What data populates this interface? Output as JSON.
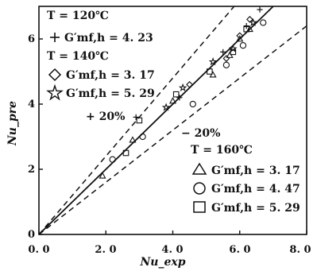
{
  "chart_data": {
    "type": "scatter",
    "xlabel": "Nu_exp",
    "ylabel": "Nu_pre",
    "xlim": [
      0,
      8
    ],
    "ylim": [
      0,
      7
    ],
    "x_ticks": [
      "0. 0",
      "2. 0",
      "4. 0",
      "6. 0",
      "8. 0"
    ],
    "y_ticks": [
      "0",
      "2",
      "4",
      "6"
    ],
    "legend_groups": [
      {
        "label": "T = 120℃",
        "entries": [
          {
            "symbol": "plus",
            "label": "G′mf,h = 4. 23"
          }
        ]
      },
      {
        "label": "T = 140℃",
        "entries": [
          {
            "symbol": "diamond",
            "label": "G′mf,h = 3. 17"
          },
          {
            "symbol": "star",
            "label": "G′mf,h = 5. 29"
          }
        ]
      },
      {
        "label": "T = 160℃",
        "entries": [
          {
            "symbol": "triangle",
            "label": "G′mf,h = 3. 17"
          },
          {
            "symbol": "circle",
            "label": "G′mf,h = 4. 47"
          },
          {
            "symbol": "square",
            "label": "G′mf,h = 5. 29"
          }
        ]
      }
    ],
    "annotations": [
      "+ 20%",
      "− 20%"
    ],
    "reference_lines": [
      {
        "name": "parity",
        "slope": 1.0,
        "style": "solid"
      },
      {
        "name": "+20%",
        "slope": 1.2,
        "style": "dashed"
      },
      {
        "name": "-20%",
        "slope": 0.8,
        "style": "dashed"
      }
    ],
    "series": [
      {
        "symbol": "plus",
        "points": [
          [
            2.9,
            3.6
          ],
          [
            4.2,
            4.2
          ],
          [
            5.5,
            5.6
          ],
          [
            6.2,
            6.4
          ],
          [
            6.6,
            6.9
          ]
        ]
      },
      {
        "symbol": "diamond",
        "points": [
          [
            4.5,
            4.6
          ],
          [
            5.6,
            5.4
          ],
          [
            6.0,
            6.1
          ],
          [
            6.3,
            6.6
          ]
        ]
      },
      {
        "symbol": "star",
        "points": [
          [
            3.8,
            3.9
          ],
          [
            4.3,
            4.5
          ],
          [
            5.2,
            5.3
          ],
          [
            5.8,
            5.7
          ],
          [
            6.4,
            6.5
          ]
        ]
      },
      {
        "symbol": "triangle",
        "points": [
          [
            1.9,
            1.8
          ],
          [
            2.8,
            2.9
          ],
          [
            4.0,
            4.1
          ],
          [
            5.2,
            4.9
          ],
          [
            5.7,
            5.5
          ],
          [
            6.0,
            6.0
          ],
          [
            6.3,
            6.3
          ]
        ]
      },
      {
        "symbol": "circle",
        "points": [
          [
            2.2,
            2.3
          ],
          [
            3.1,
            3.0
          ],
          [
            4.6,
            4.0
          ],
          [
            5.6,
            5.2
          ],
          [
            6.1,
            5.8
          ],
          [
            6.7,
            6.5
          ]
        ]
      },
      {
        "symbol": "square",
        "points": [
          [
            2.6,
            2.5
          ],
          [
            3.0,
            3.5
          ],
          [
            4.1,
            4.3
          ],
          [
            5.1,
            5.0
          ],
          [
            5.8,
            5.6
          ],
          [
            6.2,
            6.3
          ]
        ]
      }
    ]
  }
}
